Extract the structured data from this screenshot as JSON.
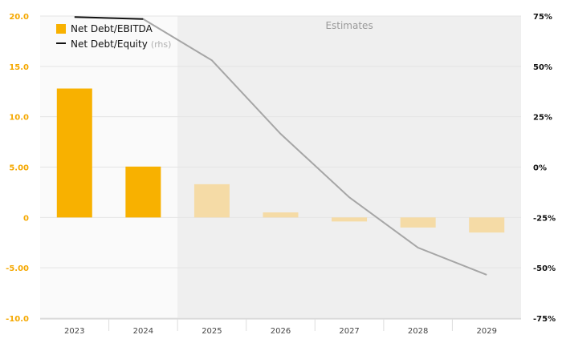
{
  "chart_data": {
    "type": "bar",
    "categories": [
      "2023",
      "2024",
      "2025",
      "2026",
      "2027",
      "2028",
      "2029"
    ],
    "series": [
      {
        "name": "Net Debt/EBITDA",
        "kind": "bar",
        "axis": "left",
        "values": [
          12.8,
          5.05,
          3.3,
          0.5,
          -0.4,
          -1.0,
          -1.5
        ]
      },
      {
        "name": "Net Debt/Equity",
        "name_suffix": "(rhs)",
        "kind": "line",
        "axis": "right",
        "values": [
          74.5,
          73.5,
          53.0,
          16.5,
          -15.0,
          -40.0,
          -53.5
        ]
      }
    ],
    "y_left": {
      "range": [
        -10,
        20
      ],
      "ticks": [
        -10,
        -5,
        0,
        5,
        10,
        15,
        20
      ],
      "tick_labels": [
        "-10.0",
        "-5.00",
        "0",
        "5.00",
        "10.0",
        "15.0",
        "20.0"
      ]
    },
    "y_right": {
      "range": [
        -75,
        75
      ],
      "ticks": [
        -75,
        -50,
        -25,
        0,
        25,
        50,
        75
      ],
      "tick_labels": [
        "-75%",
        "-50%",
        "-25%",
        "0%",
        "25%",
        "50%",
        "75%"
      ]
    },
    "estimates": {
      "label": "Estimates",
      "from_category": "2025"
    },
    "legend_position": "top-left",
    "grid": true,
    "colors": {
      "bar_actual": "#f8b100",
      "bar_estimate": "#f5dba6",
      "line_actual": "#111111",
      "line_estimate": "#a6a6a6",
      "left_axis_text": "#f5a800",
      "estimate_shade": "#efefef",
      "plot_bg": "#fafafa"
    }
  }
}
